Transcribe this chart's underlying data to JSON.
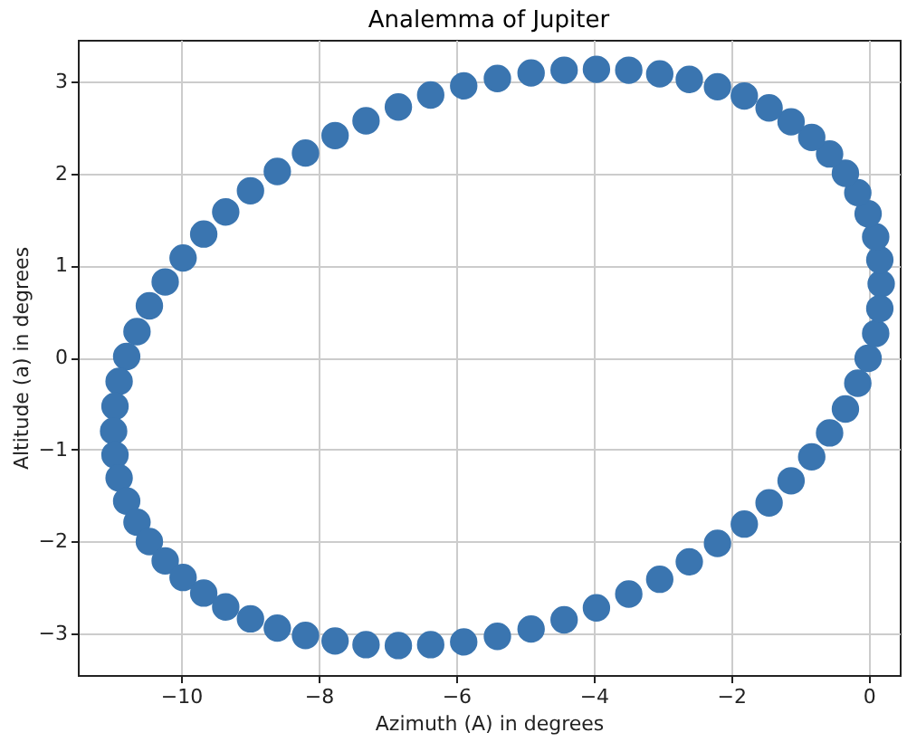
{
  "chart_data": {
    "type": "scatter",
    "title": "Analemma of Jupiter",
    "xlabel": "Azimuth (A) in degrees",
    "ylabel": "Altitude (a) in degrees",
    "xlim": [
      -11.5,
      0.45
    ],
    "ylim": [
      -3.45,
      3.45
    ],
    "xticks": [
      -10,
      -8,
      -6,
      -4,
      -2,
      0
    ],
    "yticks": [
      -3,
      -2,
      -1,
      0,
      1,
      2,
      3
    ],
    "grid": true,
    "marker": "circle",
    "series": [
      {
        "color": "#3a75b0",
        "x": [
          0.18,
          0.16,
          0.1,
          -0.01,
          -0.16,
          -0.34,
          -0.57,
          -0.83,
          -1.13,
          -1.45,
          -1.81,
          -2.2,
          -2.61,
          -3.04,
          -3.49,
          -3.96,
          -4.43,
          -4.91,
          -5.4,
          -5.89,
          -6.37,
          -6.84,
          -7.31,
          -7.76,
          -8.19,
          -8.6,
          -8.99,
          -9.35,
          -9.67,
          -9.97,
          -10.23,
          -10.46,
          -10.64,
          -10.79,
          -10.9,
          -10.96,
          -10.98,
          -10.96,
          -10.9,
          -10.79,
          -10.64,
          -10.46,
          -10.23,
          -9.97,
          -9.67,
          -9.35,
          -8.99,
          -8.6,
          -8.19,
          -7.76,
          -7.31,
          -6.84,
          -6.37,
          -5.89,
          -5.4,
          -4.91,
          -4.43,
          -3.96,
          -3.49,
          -3.04,
          -2.61,
          -2.2,
          -1.81,
          -1.45,
          -1.13,
          -0.83,
          -0.57,
          -0.34,
          -0.16,
          -0.01,
          0.1,
          0.16
        ],
        "values": [
          0.8,
          1.06,
          1.31,
          1.56,
          1.79,
          2.0,
          2.21,
          2.39,
          2.56,
          2.71,
          2.84,
          2.94,
          3.02,
          3.08,
          3.12,
          3.13,
          3.12,
          3.09,
          3.03,
          2.95,
          2.85,
          2.72,
          2.57,
          2.41,
          2.22,
          2.02,
          1.81,
          1.58,
          1.34,
          1.08,
          0.82,
          0.56,
          0.28,
          0.01,
          -0.26,
          -0.53,
          -0.8,
          -1.06,
          -1.31,
          -1.56,
          -1.79,
          -2.0,
          -2.21,
          -2.39,
          -2.56,
          -2.71,
          -2.84,
          -2.94,
          -3.02,
          -3.08,
          -3.12,
          -3.13,
          -3.12,
          -3.09,
          -3.03,
          -2.95,
          -2.85,
          -2.72,
          -2.57,
          -2.41,
          -2.22,
          -2.02,
          -1.81,
          -1.58,
          -1.34,
          -1.08,
          -0.82,
          -0.56,
          -0.28,
          -0.01,
          0.26,
          0.53
        ]
      }
    ]
  }
}
